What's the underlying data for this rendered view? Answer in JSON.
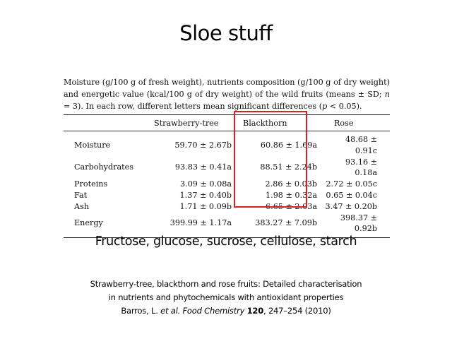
{
  "slide": {
    "title": "Sloe stuff",
    "sugars_line": "Fructose, glucose, sucrose, cellulose, starch"
  },
  "caption": {
    "part1": "Moisture (g/100 g of fresh weight), nutrients composition (g/100 g of dry weight) and energetic value (kcal/100 g of dry weight) of the wild fruits (means ± SD; ",
    "n_var": "n",
    "part2": " = 3). In each row, different letters mean significant differences (",
    "p_var": "p",
    "part3": " < 0.05)."
  },
  "table": {
    "columns": [
      "Strawberry-tree",
      "Blackthorn",
      "Rose"
    ],
    "rows": [
      {
        "label": "Moisture",
        "values": [
          "59.70 ± 2.67b",
          "60.86 ± 1.69a",
          "48.68 ± 0.91c"
        ]
      },
      {
        "label": "Carbohydrates",
        "values": [
          "93.83 ± 0.41a",
          "88.51 ± 2.24b",
          "93.16 ± 0.18a"
        ]
      },
      {
        "label": "Proteins",
        "values": [
          "3.09 ± 0.08a",
          "2.86 ± 0.03b",
          "2.72 ± 0.05c"
        ]
      },
      {
        "label": "Fat",
        "values": [
          "1.37 ± 0.40b",
          "1.98 ± 0.32a",
          "0.65 ± 0.04c"
        ]
      },
      {
        "label": "Ash",
        "values": [
          "1.71 ± 0.09b",
          "6.65 ± 2.03a",
          "3.47 ± 0.20b"
        ]
      },
      {
        "label": "Energy",
        "values": [
          "399.99 ± 1.17a",
          "383.27 ± 7.09b",
          "398.37 ± 0.92b"
        ]
      }
    ],
    "highlight_color": "#e02020"
  },
  "reference": {
    "line1": "Strawberry-tree, blackthorn and rose fruits: Detailed characterisation",
    "line2": "in nutrients and phytochemicals with antioxidant properties",
    "authors": "Barros, L. ",
    "etal": "et al.",
    "journal": " Food Chemistry ",
    "volume": "120",
    "pages_year": ", 247–254 (2010)"
  }
}
